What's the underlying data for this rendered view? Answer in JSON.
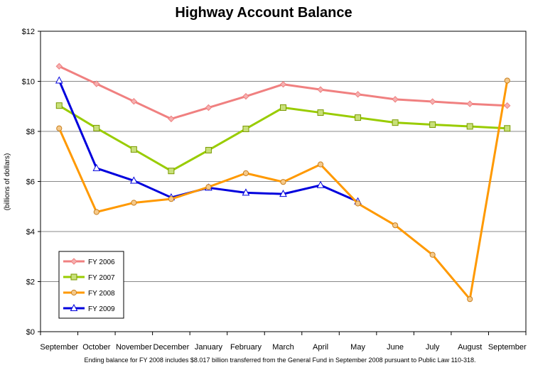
{
  "chart_data": {
    "type": "line",
    "title": "Highway Account Balance",
    "ylabel": "(billions of dollars)",
    "xlabel": "",
    "ylim": [
      0,
      12
    ],
    "ytick_labels": [
      "$0",
      "$2",
      "$4",
      "$6",
      "$8",
      "$10",
      "$12"
    ],
    "categories": [
      "September",
      "October",
      "November",
      "December",
      "January",
      "February",
      "March",
      "April",
      "May",
      "June",
      "July",
      "August",
      "September"
    ],
    "grid": "horizontal",
    "legend_position": "bottom-left",
    "note": "Ending balance for FY 2008 includes $8.017 billion transferred from the General Fund in September 2008 pursuant to Public Law 110-318.",
    "series": [
      {
        "name": "FY 2006",
        "color": "#f08080",
        "marker": "diamond",
        "values": [
          10.6,
          9.9,
          9.2,
          8.5,
          8.95,
          9.4,
          9.88,
          9.67,
          9.48,
          9.28,
          9.19,
          9.1,
          9.03
        ]
      },
      {
        "name": "FY 2007",
        "color": "#99cc00",
        "marker": "square",
        "values": [
          9.03,
          8.13,
          7.28,
          6.42,
          7.25,
          8.1,
          8.95,
          8.75,
          8.55,
          8.35,
          8.27,
          8.2,
          8.12
        ]
      },
      {
        "name": "FY 2008",
        "color": "#ff9900",
        "marker": "circle",
        "values": [
          8.12,
          4.78,
          5.15,
          5.3,
          5.78,
          6.33,
          5.98,
          6.68,
          5.12,
          4.25,
          3.07,
          1.3,
          10.03
        ]
      },
      {
        "name": "FY 2009",
        "color": "#0000dd",
        "marker": "triangle",
        "values": [
          10.03,
          6.53,
          6.03,
          5.36,
          5.75,
          5.55,
          5.5,
          5.85,
          5.2,
          null,
          null,
          null,
          null
        ]
      }
    ]
  }
}
